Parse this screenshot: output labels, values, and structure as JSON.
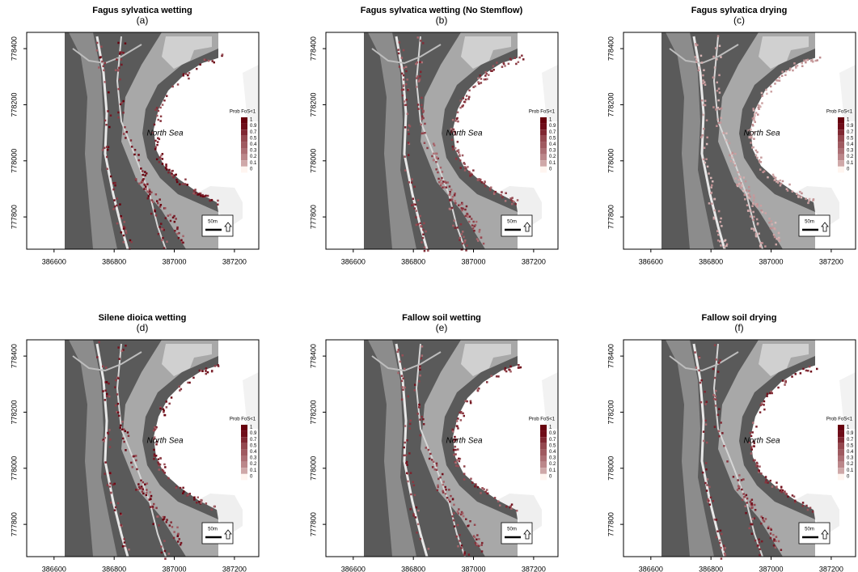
{
  "axes": {
    "xlim": [
      386509,
      387281
    ],
    "ylim": [
      777685,
      778458
    ],
    "xticks": [
      386600,
      386800,
      387000,
      387200
    ],
    "yticks": [
      777800,
      778000,
      778200,
      778400
    ]
  },
  "legend": {
    "title": "Prob FoS<1",
    "levels": [
      1,
      0.9,
      0.7,
      0.5,
      0.4,
      0.3,
      0.2,
      0.1,
      0
    ]
  },
  "sea_label": "North Sea",
  "scale_label": "50m",
  "panels": [
    {
      "title": "Fagus sylvatica wetting",
      "letter": "(a)"
    },
    {
      "title": "Fagus sylvatica wetting (No Stemflow)",
      "letter": "(b)"
    },
    {
      "title": "Fagus sylvatica drying",
      "letter": "(c)"
    },
    {
      "title": "Silene dioica wetting",
      "letter": "(d)"
    },
    {
      "title": "Fallow soil wetting",
      "letter": "(e)"
    },
    {
      "title": "Fallow soil drying",
      "letter": "(f)"
    }
  ]
}
